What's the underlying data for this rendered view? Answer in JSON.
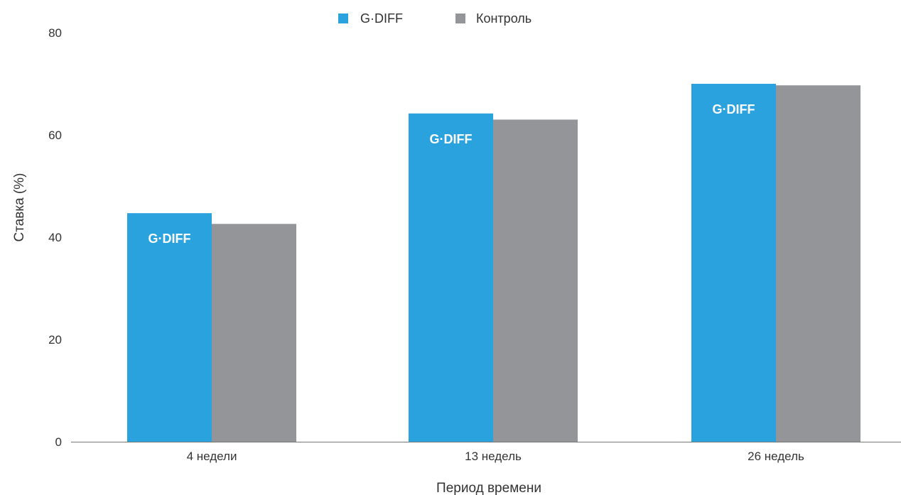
{
  "chart_data": {
    "type": "bar",
    "title": "",
    "xlabel": "Период времени",
    "ylabel": "Ставка (%)",
    "ylim": [
      0,
      80
    ],
    "yticks": [
      0,
      20,
      40,
      60,
      80
    ],
    "categories": [
      "4 недели",
      "13 недель",
      "26 недель"
    ],
    "series": [
      {
        "name": "G·DIFF",
        "color": "#2aa2dd",
        "values": [
          44.7,
          64.2,
          70.0
        ],
        "bar_label": "G·DIFF"
      },
      {
        "name": "Контроль",
        "color": "#939598",
        "values": [
          42.6,
          63.0,
          69.7
        ]
      }
    ],
    "legend_position": "top-center",
    "grid": false
  }
}
